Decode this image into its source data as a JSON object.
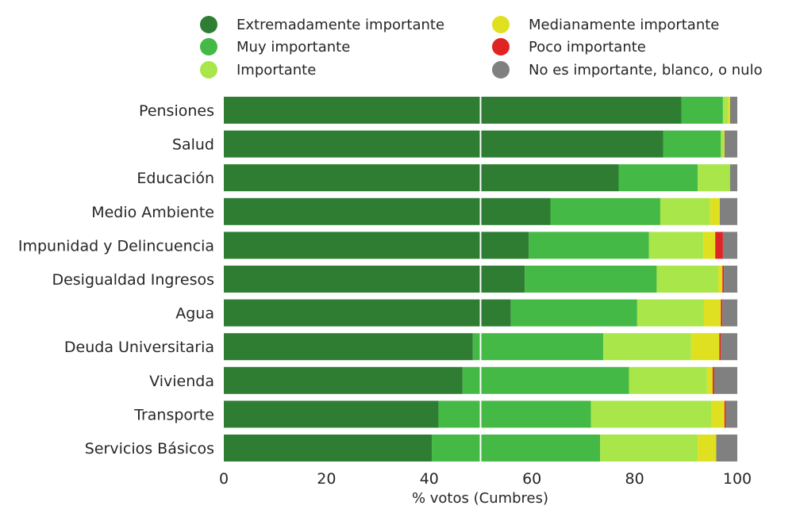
{
  "chart_data": {
    "type": "bar",
    "orientation": "horizontal",
    "stacked": true,
    "xlabel": "% votos (Cumbres)",
    "ylabel": "",
    "title": "",
    "xlim": [
      0,
      100
    ],
    "xticks": [
      "0",
      "20",
      "40",
      "60",
      "80",
      "100"
    ],
    "reference_line": 50,
    "legend_position": "top",
    "categories": [
      "Pensiones",
      "Salud",
      "Educación",
      "Medio Ambiente",
      "Impunidad y Delincuencia",
      "Desigualdad Ingresos",
      "Agua",
      "Deuda Universitaria",
      "Vivienda",
      "Transporte",
      "Servicios Básicos"
    ],
    "series": [
      {
        "name": "Extremadamente importante",
        "color": "#2e7d32",
        "values": [
          89.1,
          85.6,
          76.9,
          63.6,
          59.4,
          58.6,
          55.9,
          48.5,
          46.5,
          41.8,
          40.5
        ]
      },
      {
        "name": "Muy importante",
        "color": "#45b945",
        "values": [
          8.1,
          11.2,
          15.4,
          21.4,
          23.4,
          25.7,
          24.6,
          25.4,
          32.4,
          29.7,
          32.8
        ]
      },
      {
        "name": "Importante",
        "color": "#a8e64a",
        "values": [
          1.0,
          0.5,
          6.3,
          9.7,
          10.6,
          12.0,
          13.0,
          17.1,
          15.2,
          23.4,
          19.0
        ]
      },
      {
        "name": "Medianamente importante",
        "color": "#dfe020",
        "values": [
          0.4,
          0.2,
          0.0,
          1.9,
          2.3,
          0.8,
          3.3,
          5.5,
          1.1,
          2.6,
          3.6
        ]
      },
      {
        "name": "Poco importante",
        "color": "#e02424",
        "values": [
          0.0,
          0.0,
          0.0,
          0.0,
          1.5,
          0.3,
          0.3,
          0.3,
          0.3,
          0.3,
          0.0
        ]
      },
      {
        "name": "No es importante, blanco, o nulo",
        "color": "#808080",
        "values": [
          1.4,
          2.5,
          1.4,
          3.4,
          2.8,
          2.6,
          2.9,
          3.2,
          4.5,
          2.2,
          4.1
        ]
      }
    ]
  }
}
